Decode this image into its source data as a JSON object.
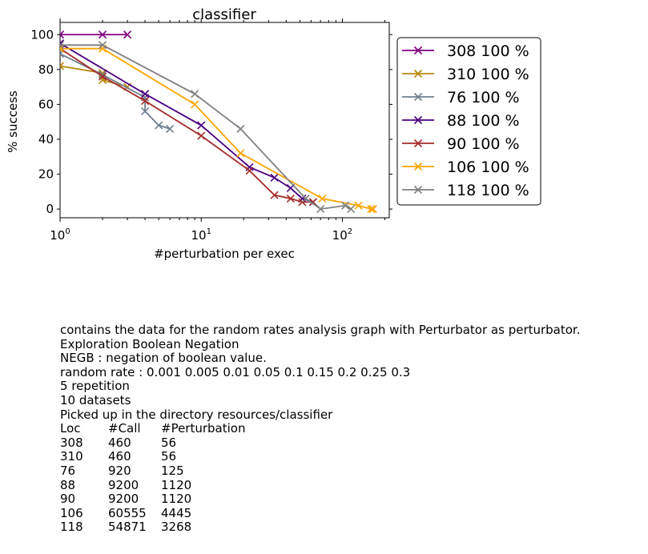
{
  "chart_data": {
    "type": "line",
    "title": "classifier",
    "xlabel": "#perturbation per exec",
    "ylabel": "% success",
    "xscale": "log",
    "xlim": [
      1,
      215
    ],
    "ylim": [
      -5,
      107
    ],
    "xticks": [
      {
        "value": 1,
        "base": "10",
        "exp": "0"
      },
      {
        "value": 10,
        "base": "10",
        "exp": "1"
      },
      {
        "value": 100,
        "base": "10",
        "exp": "2"
      }
    ],
    "yticks": [
      0,
      20,
      40,
      60,
      80,
      100
    ],
    "legend_position": "outside-right",
    "series": [
      {
        "name": "308 100 %",
        "color": "#800080",
        "x": [
          1,
          2,
          3
        ],
        "y": [
          100,
          100,
          100
        ]
      },
      {
        "name": "310 100 %",
        "color": "#B8860B",
        "x": [
          1,
          2,
          2,
          3
        ],
        "y": [
          82,
          78,
          74,
          70
        ]
      },
      {
        "name": "76 100 %",
        "color": "#708090",
        "x": [
          1,
          2,
          4,
          4,
          5,
          6
        ],
        "y": [
          89,
          77,
          64,
          56,
          48,
          46
        ]
      },
      {
        "name": "88 100 %",
        "color": "#4B0082",
        "x": [
          1,
          4,
          10,
          22,
          33,
          43,
          52,
          62
        ],
        "y": [
          95,
          66,
          48,
          24,
          18,
          12,
          6,
          4
        ]
      },
      {
        "name": "90 100 %",
        "color": "#A52A2A",
        "x": [
          1,
          2,
          4,
          10,
          22,
          33,
          43,
          52,
          62
        ],
        "y": [
          92,
          76,
          62,
          42,
          22,
          8,
          6,
          4,
          4
        ]
      },
      {
        "name": "106 100 %",
        "color": "#FFA500",
        "x": [
          1,
          2,
          9,
          19,
          72,
          130,
          160,
          165
        ],
        "y": [
          92,
          92,
          60,
          32,
          6,
          2,
          0,
          0
        ]
      },
      {
        "name": "118 100 %",
        "color": "#808080",
        "x": [
          1,
          2,
          9,
          19,
          55,
          70,
          105,
          115
        ],
        "y": [
          94,
          94,
          66,
          46,
          6,
          0,
          2,
          0
        ]
      }
    ]
  },
  "caption": {
    "lines": [
      "contains the data for the random rates analysis graph with Perturbator as perturbator.",
      "Exploration Boolean Negation",
      "NEGB : negation of boolean value.",
      "random rate : 0.001 0.005 0.01 0.05 0.1 0.15 0.2 0.25 0.3",
      "5 repetition",
      "10 datasets",
      "Picked up in the directory resources/classifier"
    ],
    "table": {
      "headers": [
        "Loc",
        "#Call",
        "#Perturbation"
      ],
      "rows": [
        [
          "308",
          "460",
          "56"
        ],
        [
          "310",
          "460",
          "56"
        ],
        [
          "76",
          "920",
          "125"
        ],
        [
          "88",
          "9200",
          "1120"
        ],
        [
          "90",
          "9200",
          "1120"
        ],
        [
          "106",
          "60555",
          "4445"
        ],
        [
          "118",
          "54871",
          "3268"
        ]
      ]
    }
  }
}
